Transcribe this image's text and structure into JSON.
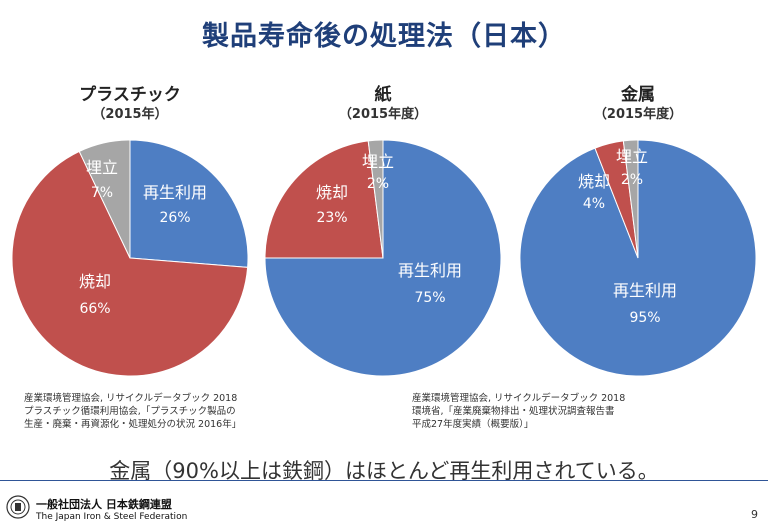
{
  "title": "製品寿命後の処理法（日本）",
  "chart_data": [
    {
      "type": "pie",
      "title": "プラスチック",
      "subtitle": "（2015年）",
      "slices": [
        {
          "label": "再生利用",
          "value": 26,
          "pct_label": "26%",
          "color": "#4e7ec3"
        },
        {
          "label": "焼却",
          "value": 66,
          "pct_label": "66%",
          "color": "#c0504d"
        },
        {
          "label": "埋立",
          "value": 7,
          "pct_label": "7%",
          "color": "#a6a6a6"
        }
      ]
    },
    {
      "type": "pie",
      "title": "紙",
      "subtitle": "（2015年度）",
      "slices": [
        {
          "label": "再生利用",
          "value": 75,
          "pct_label": "75%",
          "color": "#4e7ec3"
        },
        {
          "label": "焼却",
          "value": 23,
          "pct_label": "23%",
          "color": "#c0504d"
        },
        {
          "label": "埋立",
          "value": 2,
          "pct_label": "2%",
          "color": "#a6a6a6"
        }
      ]
    },
    {
      "type": "pie",
      "title": "金属",
      "subtitle": "（2015年度）",
      "slices": [
        {
          "label": "再生利用",
          "value": 95,
          "pct_label": "95%",
          "color": "#4e7ec3"
        },
        {
          "label": "焼却",
          "value": 4,
          "pct_label": "4%",
          "color": "#c0504d"
        },
        {
          "label": "埋立",
          "value": 2,
          "pct_label": "2%",
          "color": "#a6a6a6"
        }
      ]
    }
  ],
  "sources": {
    "left": "産業環境管理協会, リサイクルデータブック 2018\nプラスチック循環利用協会,「プラスチック製品の\n生産・廃棄・再資源化・処理処分の状況 2016年」",
    "right": "産業環境管理協会, リサイクルデータブック 2018\n環境省,「産業廃棄物排出・処理状況調査報告書\n平成27年度実績（概要版）」"
  },
  "conclusion": "金属（90%以上は鉄鋼）はほとんど再生利用されている。",
  "footer": {
    "org_jp": "一般社団法人 日本鉄鋼連盟",
    "org_en": "The Japan Iron & Steel Federation",
    "page": "9",
    "line_color": "#2f5597"
  }
}
